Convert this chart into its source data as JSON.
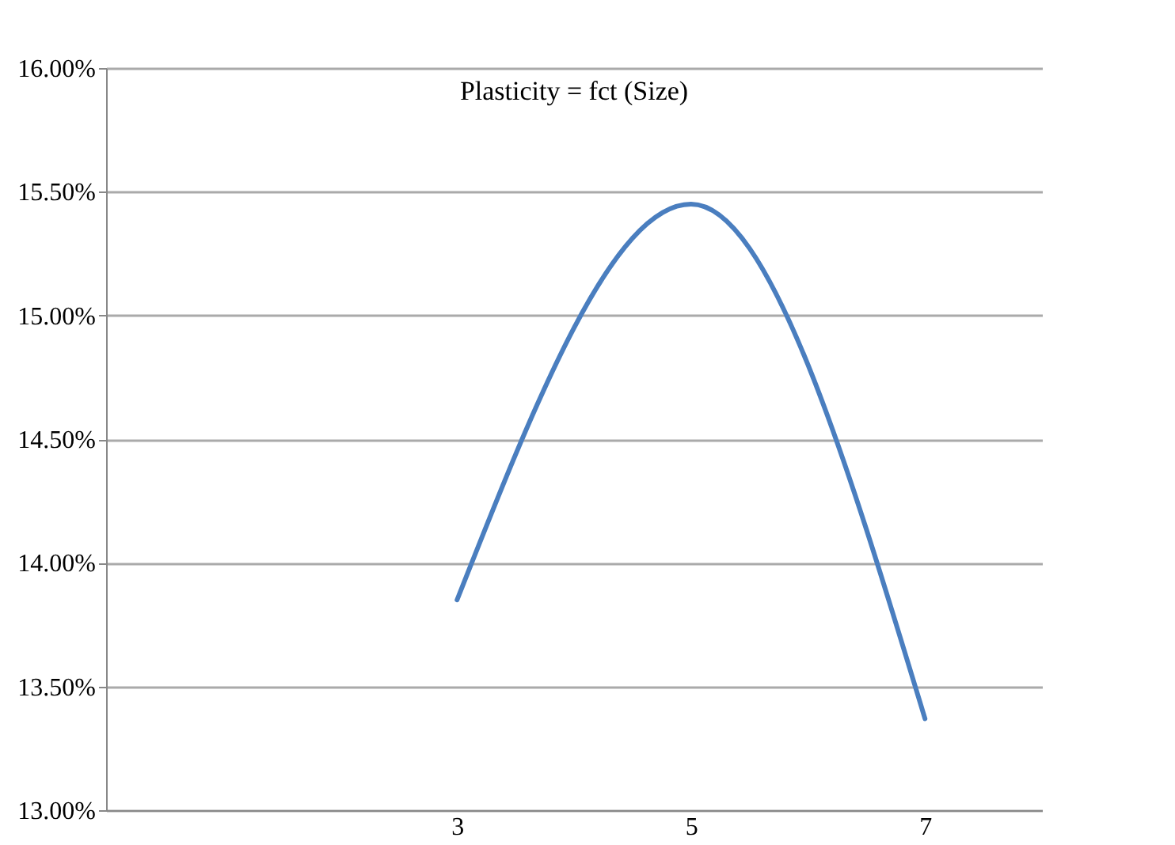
{
  "chart_data": {
    "type": "line",
    "title": "Plasticity = fct (Size)",
    "categories": [
      null,
      "3",
      "5",
      "7"
    ],
    "series": [
      {
        "color": "#4a7ebf",
        "values": [
          null,
          13.85,
          15.45,
          13.37
        ]
      }
    ],
    "ylim": [
      13,
      16
    ],
    "yticks": [
      {
        "value": 13,
        "label": "13.00%"
      },
      {
        "value": 13.5,
        "label": "13.50%"
      },
      {
        "value": 14,
        "label": "14.00%"
      },
      {
        "value": 14.5,
        "label": "14.50%"
      },
      {
        "value": 15,
        "label": "15.00%"
      },
      {
        "value": 15.5,
        "label": "15.50%"
      },
      {
        "value": 16,
        "label": "16.00%"
      }
    ],
    "grid": "y",
    "marker": "none",
    "line_style": "solid"
  }
}
